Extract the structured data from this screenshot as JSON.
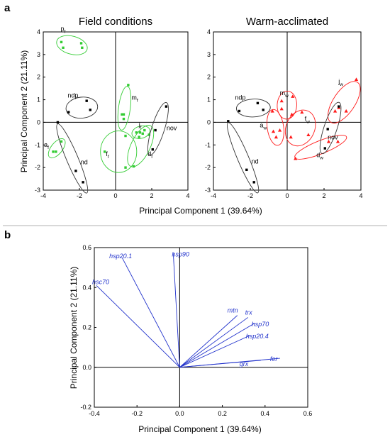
{
  "figure": {
    "panel_a": "a",
    "panel_b": "b",
    "colors": {
      "field_points": "#33cc33",
      "warm_points": "#ff1a1a",
      "neutral_points": "#000000",
      "ellipse_dark": "#333333",
      "vector": "#2233cc"
    }
  },
  "chart_data": [
    {
      "type": "scatter",
      "title": "Field conditions",
      "xlabel": "Principal Component 1 (39.64%)",
      "ylabel": "Principal Component 2 (21.11%)",
      "xlim": [
        -4,
        4
      ],
      "ylim": [
        -3,
        4
      ],
      "xticks": [
        "-4",
        "-2",
        "0",
        "2",
        "4"
      ],
      "yticks": [
        "-3",
        "-2",
        "-1",
        "0",
        "1",
        "2",
        "3",
        "4"
      ],
      "grid": false,
      "groups": [
        {
          "name": "p",
          "sub": "f",
          "color": "green",
          "points": [
            [
              -2.9,
              3.3
            ],
            [
              -3.0,
              3.55
            ],
            [
              -1.85,
              3.3
            ],
            [
              -1.9,
              3.5
            ]
          ]
        },
        {
          "name": "m",
          "sub": "f",
          "color": "green",
          "points": [
            [
              0.7,
              1.65
            ],
            [
              0.45,
              0.35
            ],
            [
              0.45,
              0.15
            ],
            [
              0.35,
              0.35
            ]
          ]
        },
        {
          "name": "ndp",
          "sub": "",
          "color": "black",
          "points": [
            [
              -2.6,
              0.45
            ],
            [
              -1.6,
              0.95
            ],
            [
              -1.4,
              0.55
            ]
          ]
        },
        {
          "name": "a",
          "sub": "f",
          "color": "green",
          "points": [
            [
              -3.3,
              -1.3
            ],
            [
              -3.45,
              -1.3
            ],
            [
              -3.0,
              -0.85
            ]
          ]
        },
        {
          "name": "nd",
          "sub": "",
          "color": "black",
          "points": [
            [
              -3.2,
              0.0
            ],
            [
              -2.2,
              -2.15
            ],
            [
              -1.8,
              -2.65
            ]
          ]
        },
        {
          "name": "f",
          "sub": "f",
          "color": "green",
          "points": [
            [
              -0.6,
              -1.3
            ],
            [
              0.55,
              -0.6
            ],
            [
              0.55,
              -2.0
            ]
          ]
        },
        {
          "name": "j",
          "sub": "f",
          "color": "green",
          "points": [
            [
              1.15,
              -0.45
            ],
            [
              1.35,
              -0.45
            ],
            [
              1.5,
              -0.5
            ],
            [
              1.6,
              -0.35
            ]
          ]
        },
        {
          "name": "d",
          "sub": "f",
          "color": "green",
          "points": [
            [
              1.0,
              -1.95
            ],
            [
              1.85,
              -0.55
            ],
            [
              1.3,
              -0.65
            ]
          ]
        },
        {
          "name": "nov",
          "sub": "",
          "color": "black",
          "points": [
            [
              2.2,
              -0.35
            ],
            [
              2.05,
              -1.2
            ],
            [
              2.8,
              0.7
            ]
          ]
        }
      ]
    },
    {
      "type": "scatter",
      "title": "Warm-acclimated",
      "xlabel": "Principal Component 1 (39.64%)",
      "ylabel": "Principal Component 2 (21.11%)",
      "xlim": [
        -4,
        4
      ],
      "ylim": [
        -3,
        4
      ],
      "xticks": [
        "-4",
        "-2",
        "0",
        "2",
        "4"
      ],
      "yticks": [
        "-3",
        "-2",
        "-1",
        "0",
        "1",
        "2",
        "3",
        "4"
      ],
      "grid": false,
      "groups": [
        {
          "name": "ndp",
          "sub": "",
          "color": "black",
          "points": [
            [
              -2.6,
              0.5
            ],
            [
              -1.6,
              0.85
            ],
            [
              -1.3,
              0.55
            ]
          ]
        },
        {
          "name": "m",
          "sub": "w",
          "color": "red",
          "points": [
            [
              -0.3,
              0.6
            ],
            [
              -0.3,
              0.95
            ],
            [
              0.3,
              1.15
            ],
            [
              0.25,
              0.35
            ]
          ]
        },
        {
          "name": "a",
          "sub": "w",
          "color": "red",
          "points": [
            [
              -0.8,
              0.5
            ],
            [
              -0.75,
              -0.4
            ],
            [
              -0.6,
              -0.65
            ],
            [
              -0.4,
              -0.35
            ]
          ]
        },
        {
          "name": "f",
          "sub": "w",
          "color": "red",
          "points": [
            [
              0.2,
              -0.65
            ],
            [
              0.8,
              0.45
            ],
            [
              1.15,
              -0.55
            ]
          ]
        },
        {
          "name": "j",
          "sub": "w",
          "color": "red",
          "points": [
            [
              2.6,
              0.5
            ],
            [
              2.8,
              0.65
            ],
            [
              3.2,
              0.5
            ],
            [
              3.75,
              1.9
            ]
          ]
        },
        {
          "name": "d",
          "sub": "w",
          "color": "red",
          "points": [
            [
              0.45,
              -1.6
            ],
            [
              2.25,
              -0.85
            ],
            [
              2.75,
              -0.85
            ]
          ]
        },
        {
          "name": "nd",
          "sub": "",
          "color": "black",
          "points": [
            [
              -3.2,
              0.05
            ],
            [
              -2.2,
              -2.1
            ],
            [
              -1.8,
              -2.65
            ]
          ]
        },
        {
          "name": "nov",
          "sub": "",
          "color": "black",
          "points": [
            [
              2.05,
              -1.15
            ],
            [
              2.8,
              0.7
            ],
            [
              2.2,
              -0.3
            ]
          ]
        }
      ]
    },
    {
      "type": "biplot",
      "xlabel": "Principal Component 1 (39.64%)",
      "ylabel": "Principal Component 2 (21.11%)",
      "xlim": [
        -0.4,
        0.6
      ],
      "ylim": [
        -0.2,
        0.6
      ],
      "xticks": [
        "-0.4",
        "-0.2",
        "0.0",
        "0.2",
        "0.4",
        "0.6"
      ],
      "yticks": [
        "-0.2",
        "0.0",
        "0.2",
        "0.4",
        "0.6"
      ],
      "vectors": [
        {
          "name": "hsp90",
          "x": -0.03,
          "y": 0.57
        },
        {
          "name": "hsp20.1",
          "x": -0.27,
          "y": 0.55
        },
        {
          "name": "hsc70",
          "x": -0.39,
          "y": 0.41
        },
        {
          "name": "mtn",
          "x": 0.27,
          "y": 0.26
        },
        {
          "name": "trx",
          "x": 0.32,
          "y": 0.25
        },
        {
          "name": "hsp70",
          "x": 0.35,
          "y": 0.22
        },
        {
          "name": "hsp20.4",
          "x": 0.33,
          "y": 0.16
        },
        {
          "name": "grx",
          "x": 0.38,
          "y": 0.035
        },
        {
          "name": "fer",
          "x": 0.47,
          "y": 0.045
        }
      ]
    }
  ]
}
